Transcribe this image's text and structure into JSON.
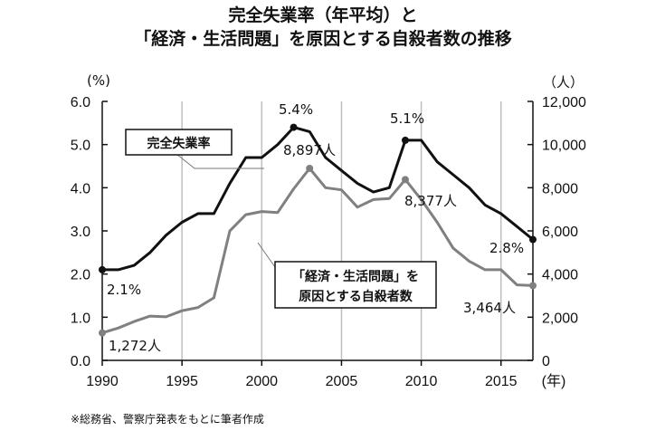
{
  "title_line1": "完全失業率（年平均）と",
  "title_line2": "「経済・生活問題」を原因とする自殺者数の推移",
  "left_unit": "(%)",
  "right_unit": "（人）",
  "x_unit": "(年)",
  "footnote": "※総務省、警察庁発表をもとに筆者作成",
  "colors": {
    "unemployment": "#111111",
    "suicides": "#808080",
    "grid": "#bfbfbf"
  },
  "chart_data": {
    "type": "line",
    "x": [
      1990,
      1991,
      1992,
      1993,
      1994,
      1995,
      1996,
      1997,
      1998,
      1999,
      2000,
      2001,
      2002,
      2003,
      2004,
      2005,
      2006,
      2007,
      2008,
      2009,
      2010,
      2011,
      2012,
      2013,
      2014,
      2015,
      2016,
      2017
    ],
    "series": [
      {
        "name": "完全失業率",
        "axis": "left",
        "values": [
          2.1,
          2.1,
          2.2,
          2.5,
          2.9,
          3.2,
          3.4,
          3.4,
          4.1,
          4.7,
          4.7,
          5.0,
          5.4,
          5.3,
          4.7,
          4.4,
          4.1,
          3.9,
          4.0,
          5.1,
          5.1,
          4.6,
          4.3,
          4.0,
          3.6,
          3.4,
          3.1,
          2.8
        ]
      },
      {
        "name": "「経済・生活問題」を原因とする自殺者数",
        "axis": "right",
        "values": [
          1272,
          1500,
          1800,
          2050,
          2020,
          2300,
          2450,
          2900,
          6000,
          6750,
          6900,
          6850,
          7950,
          8897,
          8000,
          7900,
          7100,
          7450,
          7500,
          8377,
          7450,
          6400,
          5200,
          4600,
          4200,
          4200,
          3500,
          3464
        ]
      }
    ],
    "x_ticks": [
      1990,
      1995,
      2000,
      2005,
      2010,
      2015
    ],
    "ylim_left": [
      0,
      6.0
    ],
    "yticks_left": [
      "0.0",
      "1.0",
      "2.0",
      "3.0",
      "4.0",
      "5.0",
      "6.0"
    ],
    "ylim_right": [
      0,
      12000
    ],
    "yticks_right": [
      "0",
      "2,000",
      "4,000",
      "6,000",
      "8,000",
      "10,000",
      "12,000"
    ],
    "grid": "vertical",
    "legend_unemployment": "完全失業率",
    "legend_suicide_line1": "「経済・生活問題」を",
    "legend_suicide_line2": "原因とする自殺者数",
    "annotations": {
      "u1990": "2.1%",
      "u2002": "5.4%",
      "u2009": "5.1%",
      "u2017": "2.8%",
      "s1990": "1,272人",
      "s2003": "8,897人",
      "s2009": "8,377人",
      "s2017": "3,464人"
    }
  }
}
